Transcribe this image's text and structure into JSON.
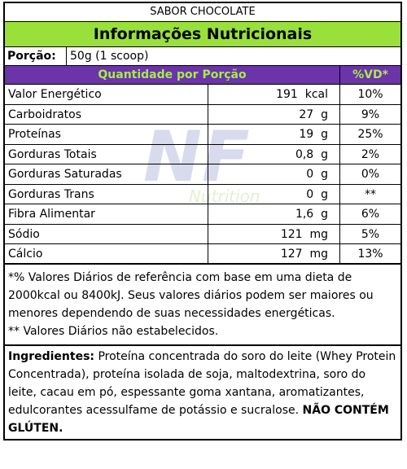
{
  "label": {
    "flavor": "SABOR CHOCOLATE",
    "title": "Informações Nutricionais",
    "portion_label": "Porção:",
    "portion_value": "50g (1 scoop)",
    "header_quantity": "Quantidade por Porção",
    "header_vd": "%VD*",
    "watermark_text": "NF",
    "watermark_subtext": "Nutrition",
    "colors": {
      "title_bg": "#99e03a",
      "header_bg": "#6b34a8",
      "header_text": "#a6ec4a"
    },
    "rows": [
      {
        "name": "Valor Energético",
        "amount": "191  kcal",
        "vd": "10%"
      },
      {
        "name": "Carboidratos",
        "amount": "27  g",
        "vd": "9%"
      },
      {
        "name": "Proteínas",
        "amount": "19  g",
        "vd": "25%"
      },
      {
        "name": "Gorduras Totais",
        "amount": "0,8  g",
        "vd": "2%"
      },
      {
        "name": "Gorduras Saturadas",
        "amount": "0  g",
        "vd": "0%"
      },
      {
        "name": "Gorduras Trans",
        "amount": "0  g",
        "vd": "**"
      },
      {
        "name": "Fibra Alimentar",
        "amount": "1,6  g",
        "vd": "6%"
      },
      {
        "name": "Sódio",
        "amount": "121  mg",
        "vd": "5%"
      },
      {
        "name": "Cálcio",
        "amount": "127  mg",
        "vd": "13%"
      }
    ],
    "footnote_1": "*% Valores Diários de referência com base em uma dieta de 2000kcal ou 8400kJ. Seus valores diários podem ser maiores ou menores dependendo de suas necessidades energéticas.",
    "footnote_2": "** Valores Diários não estabelecidos.",
    "ingredients_label": "Ingredientes:",
    "ingredients_text": " Proteína concentrada do soro do leite (Whey Protein Concentrada), proteína isolada de soja, maltodextrina, soro do leite, cacau em pó, espessante goma xantana, aromatizantes, edulcorantes acessulfame de potássio e sucralose. ",
    "gluten_warning": "NÃO CONTÉM GLÚTEN."
  }
}
